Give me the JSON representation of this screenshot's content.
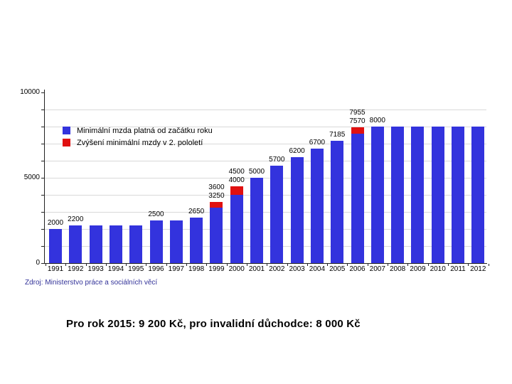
{
  "slide": {
    "caption": "Pro rok 2015: 9 200 Kč, pro invalidní důchodce: 8 000 Kč",
    "source_note": "Zdroj: Ministerstvo práce a sociálních věcí"
  },
  "chart_data": {
    "type": "bar",
    "stacked": true,
    "title": "",
    "xlabel": "",
    "ylabel": "",
    "categories": [
      "1991",
      "1992",
      "1993",
      "1994",
      "1995",
      "1996",
      "1997",
      "1998",
      "1999",
      "2000",
      "2001",
      "2002",
      "2003",
      "2004",
      "2005",
      "2006",
      "2007",
      "2008",
      "2009",
      "2010",
      "2011",
      "2012"
    ],
    "series": [
      {
        "name": "Minimální mzda platná od začátku roku",
        "color": "#3333dd",
        "values": [
          2000,
          2200,
          2200,
          2200,
          2200,
          2500,
          2500,
          2650,
          3250,
          4000,
          5000,
          5700,
          6200,
          6700,
          7185,
          7570,
          8000,
          8000,
          8000,
          8000,
          8000,
          8000
        ]
      },
      {
        "name": "Zvýšení minimální mzdy v 2. pololetí",
        "color": "#e01010",
        "values": [
          0,
          0,
          0,
          0,
          0,
          0,
          0,
          0,
          350,
          500,
          0,
          0,
          0,
          0,
          0,
          385,
          0,
          0,
          0,
          0,
          0,
          0
        ]
      }
    ],
    "bar_labels": [
      [
        "2000"
      ],
      [
        "2200"
      ],
      [],
      [],
      [],
      [
        "2500"
      ],
      [],
      [
        "2650"
      ],
      [
        "3600",
        "3250"
      ],
      [
        "4500",
        "4000"
      ],
      [
        "5000"
      ],
      [
        "5700"
      ],
      [
        "6200"
      ],
      [
        "6700"
      ],
      [
        "7185"
      ],
      [
        "7955",
        "7570"
      ],
      [
        "8000"
      ],
      [],
      [],
      [],
      [],
      []
    ],
    "ylim": [
      0,
      10000
    ],
    "ytick_step": 1000,
    "yaxis_labels": [
      {
        "value": 10000,
        "label": "10000"
      },
      {
        "value": 5000,
        "label": "5000"
      },
      {
        "value": 0,
        "label": "0"
      }
    ],
    "grid": true,
    "gridline_color": "#d9d9d9",
    "legend_position": "inside-top-left"
  }
}
